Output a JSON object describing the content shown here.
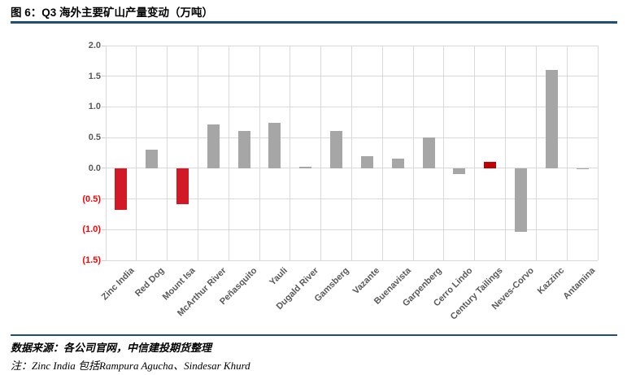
{
  "header": {
    "title": "图 6：Q3 海外主要矿山产量变动（万吨）"
  },
  "footer": {
    "source": "数据来源：各公司官网，中信建投期货整理",
    "note": "注：Zinc India 包括Rampura Agucha、Sindesar Khurd"
  },
  "colors": {
    "accent_rule": "#1F4E79",
    "gridline": "#D9D9D9",
    "axis_text": "#595959",
    "negative_axis_text": "#FF0000",
    "bar_gray": "#A6A6A6",
    "bar_red": "#D21A27",
    "bar_dark_red": "#C00000"
  },
  "chart_data": {
    "type": "bar",
    "title": "图 6：Q3 海外主要矿山产量变动（万吨）",
    "xlabel": "",
    "ylabel": "",
    "categories": [
      "Zinc India",
      "Red Dog",
      "Mount Isa",
      "McArthur River",
      "Peñasquito",
      "Yauli",
      "Dugald River",
      "Gamsberg",
      "Vazante",
      "Buenavista",
      "Garpenberg",
      "Cerro Lindo",
      "Century Tailings",
      "Neves-Corvo",
      "Kazzinc",
      "Antamina"
    ],
    "values": [
      -0.68,
      0.3,
      -0.59,
      0.71,
      0.61,
      0.74,
      0.03,
      0.61,
      0.2,
      0.16,
      0.5,
      -0.1,
      0.1,
      -1.04,
      1.6,
      -0.02
    ],
    "bar_color_keys": [
      "bar_red",
      "bar_gray",
      "bar_red",
      "bar_gray",
      "bar_gray",
      "bar_gray",
      "bar_gray",
      "bar_gray",
      "bar_gray",
      "bar_gray",
      "bar_gray",
      "bar_gray",
      "bar_dark_red",
      "bar_gray",
      "bar_gray",
      "bar_gray"
    ],
    "ylim": [
      -1.5,
      2.0
    ],
    "yticks": [
      {
        "value": 2.0,
        "label": "2.0"
      },
      {
        "value": 1.5,
        "label": "1.5"
      },
      {
        "value": 1.0,
        "label": "1.0"
      },
      {
        "value": 0.5,
        "label": "0.5"
      },
      {
        "value": 0.0,
        "label": "0.0"
      },
      {
        "value": -0.5,
        "label": "(0.5)"
      },
      {
        "value": -1.0,
        "label": "(1.0)"
      },
      {
        "value": -1.5,
        "label": "(1.5)"
      }
    ],
    "grid": "both",
    "legend_position": "none",
    "x_label_rotation": -45
  }
}
